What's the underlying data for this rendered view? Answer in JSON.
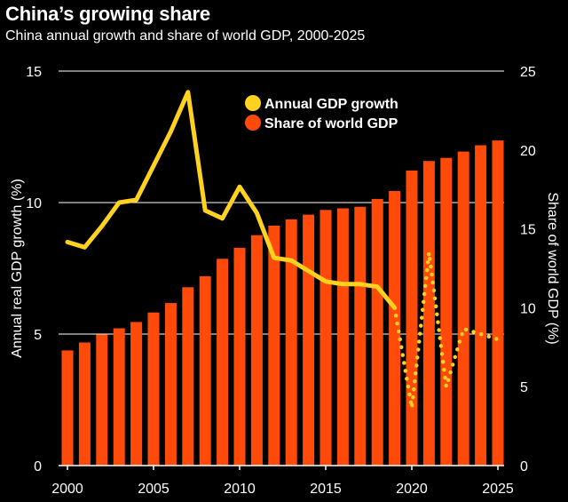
{
  "header": {
    "title": "China’s growing share",
    "subtitle": "China annual growth and share of world GDP, 2000-2025"
  },
  "colors": {
    "background": "#000000",
    "growth_line": "#FFD21F",
    "share_bars": "#FF4A0A",
    "grid": "#ffffff",
    "text": "#ffffff"
  },
  "chart_data": {
    "type": "bar+line",
    "x_ticks": [
      "2000",
      "2005",
      "2010",
      "2015",
      "2020",
      "2025"
    ],
    "y_left": {
      "label": "Annual real GDP growth (%)",
      "range": [
        0,
        15
      ],
      "ticks": [
        "0",
        "5",
        "10",
        "15"
      ]
    },
    "y_right": {
      "label": "Share of world GDP (%)",
      "range": [
        0,
        25
      ],
      "ticks": [
        "0",
        "5",
        "10",
        "15",
        "20",
        "25"
      ]
    },
    "grid": "horizontal at left-axis ticks",
    "legend": {
      "placement": "top-center",
      "items": [
        {
          "label": "Annual GDP growth",
          "marker": "circle",
          "color": "#FFD21F"
        },
        {
          "label": "Share of world GDP",
          "marker": "circle",
          "color": "#FF4A0A"
        }
      ]
    },
    "series": [
      {
        "name": "Share of world GDP",
        "kind": "bar",
        "axis": "right",
        "x": [
          2000,
          2001,
          2002,
          2003,
          2004,
          2005,
          2006,
          2007,
          2008,
          2009,
          2010,
          2011,
          2012,
          2013,
          2014,
          2015,
          2016,
          2017,
          2018,
          2019,
          2020,
          2021,
          2022,
          2023,
          2024,
          2025
        ],
        "values": [
          7.3,
          7.8,
          8.3,
          8.7,
          9.1,
          9.7,
          10.3,
          11.3,
          12.0,
          13.1,
          13.8,
          14.6,
          15.2,
          15.6,
          15.9,
          16.2,
          16.3,
          16.4,
          16.9,
          17.4,
          18.7,
          19.3,
          19.5,
          19.9,
          20.3,
          20.6
        ]
      },
      {
        "name": "Annual GDP growth",
        "kind": "line",
        "axis": "left",
        "x": [
          2000,
          2001,
          2002,
          2003,
          2004,
          2005,
          2006,
          2007,
          2008,
          2009,
          2010,
          2011,
          2012,
          2013,
          2014,
          2015,
          2016,
          2017,
          2018,
          2019
        ],
        "values": [
          8.5,
          8.3,
          9.1,
          10.0,
          10.1,
          11.4,
          12.7,
          14.2,
          9.7,
          9.4,
          10.6,
          9.6,
          7.9,
          7.8,
          7.4,
          7.0,
          6.9,
          6.9,
          6.8,
          6.0
        ]
      },
      {
        "name": "Annual GDP growth",
        "kind": "dotted-line",
        "axis": "left",
        "x": [
          2019,
          2020,
          2021,
          2022,
          2023,
          2024,
          2025
        ],
        "values": [
          6.0,
          2.2,
          8.1,
          3.0,
          5.2,
          5.0,
          4.8
        ]
      }
    ]
  }
}
